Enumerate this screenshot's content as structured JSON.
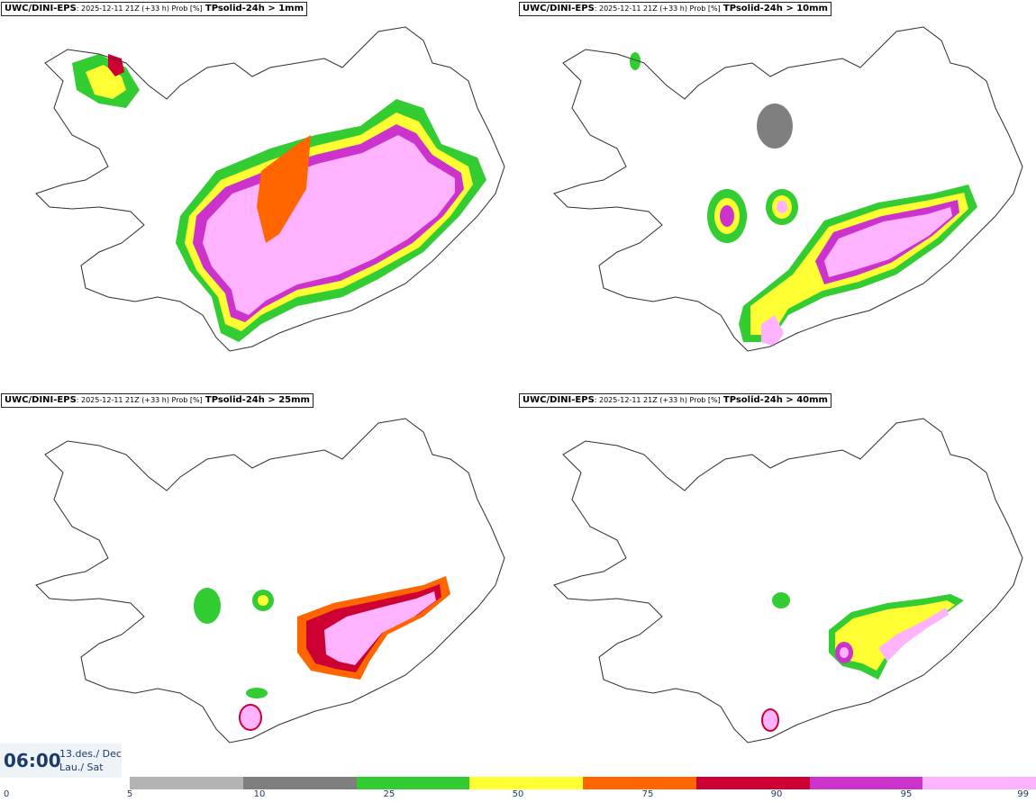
{
  "panels": [
    {
      "model": "UWC/DINI-EPS",
      "meta": ": 2025-12-11 21Z (+33 h) Prob [%]",
      "variable": "TPsolid-24h > 1mm"
    },
    {
      "model": "UWC/DINI-EPS",
      "meta": ": 2025-12-11 21Z (+33 h) Prob [%]",
      "variable": "TPsolid-24h > 10mm"
    },
    {
      "model": "UWC/DINI-EPS",
      "meta": ": 2025-12-11 21Z (+33 h) Prob [%]",
      "variable": "TPsolid-24h > 25mm"
    },
    {
      "model": "UWC/DINI-EPS",
      "meta": ": 2025-12-11 21Z (+33 h) Prob [%]",
      "variable": "TPsolid-24h > 40mm"
    }
  ],
  "valid_time": {
    "time": "06:00",
    "date_line1": "13.des./ Dec",
    "date_line2": "Lau./ Sat"
  },
  "legend": {
    "ticks": [
      "0",
      "5",
      "10",
      "25",
      "50",
      "75",
      "90",
      "95",
      "99"
    ],
    "colors": [
      "#b3b3b3",
      "#7f7f7f",
      "#33cc33",
      "#ffff33",
      "#ff6600",
      "#cc0033",
      "#cc33cc",
      "#ffb3ff"
    ]
  }
}
